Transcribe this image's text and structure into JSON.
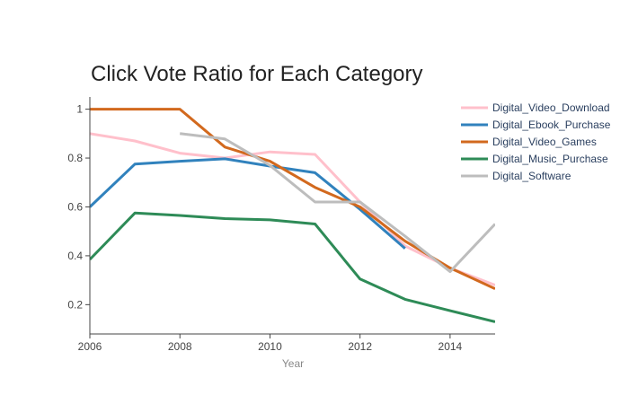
{
  "chart_data": {
    "type": "line",
    "title": "Click Vote Ratio for Each Category",
    "xlabel": "Year",
    "ylabel": "",
    "xlim": [
      2006,
      2015
    ],
    "ylim": [
      0.08,
      1.05
    ],
    "x_ticks": [
      2006,
      2008,
      2010,
      2012,
      2014
    ],
    "y_ticks": [
      0.2,
      0.4,
      0.6,
      0.8,
      1
    ],
    "x_tick_labels": [
      "2006",
      "2008",
      "2010",
      "2012",
      "2014"
    ],
    "y_tick_labels": [
      "0.2",
      "0.4",
      "0.6",
      "0.8",
      "1"
    ],
    "legend_position": "right",
    "grid": false,
    "series": [
      {
        "name": "Digital_Video_Download",
        "color": "#ffc0cb",
        "x": [
          2006,
          2007,
          2008,
          2009,
          2010,
          2011,
          2012,
          2013,
          2014,
          2015
        ],
        "y": [
          0.9,
          0.87,
          0.82,
          0.8,
          0.825,
          0.815,
          0.62,
          0.44,
          0.35,
          0.28
        ]
      },
      {
        "name": "Digital_Ebook_Purchase",
        "color": "#3182bd",
        "x": [
          2006,
          2007,
          2008,
          2009,
          2010,
          2011,
          2012,
          2013
        ],
        "y": [
          0.6,
          0.775,
          0.787,
          0.797,
          0.767,
          0.74,
          0.59,
          0.43
        ]
      },
      {
        "name": "Digital_Video_Games",
        "color": "#d2691e",
        "x": [
          2006,
          2007,
          2008,
          2009,
          2010,
          2011,
          2012,
          2013,
          2014,
          2015
        ],
        "y": [
          1.0,
          1.0,
          1.0,
          0.845,
          0.787,
          0.68,
          0.6,
          0.46,
          0.35,
          0.265
        ]
      },
      {
        "name": "Digital_Music_Purchase",
        "color": "#2e8b57",
        "x": [
          2006,
          2007,
          2008,
          2009,
          2010,
          2011,
          2012,
          2013,
          2014,
          2015
        ],
        "y": [
          0.385,
          0.575,
          0.565,
          0.552,
          0.547,
          0.53,
          0.305,
          0.222,
          0.175,
          0.13
        ]
      },
      {
        "name": "Digital_Software",
        "color": "#bdbdbd",
        "x": [
          2008,
          2009,
          2010,
          2011,
          2012,
          2013,
          2014,
          2015
        ],
        "y": [
          0.9,
          0.878,
          0.77,
          0.62,
          0.62,
          0.48,
          0.335,
          0.53
        ]
      }
    ]
  }
}
